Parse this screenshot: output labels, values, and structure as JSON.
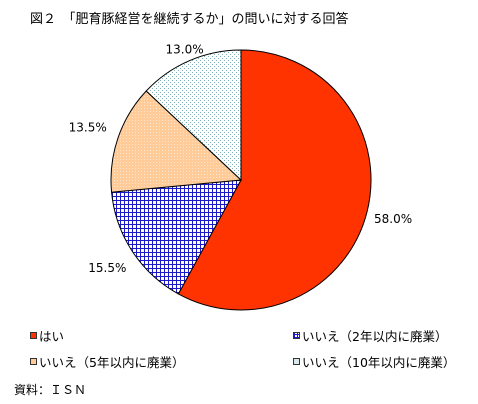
{
  "title": "図２　「肥育豚経営を継続するか」の問いに対する回答",
  "source": "資料：ＩＳＮ",
  "colors": {
    "yes": "#ff3300",
    "no2": "#1a1acc",
    "no5": "#ffcc99",
    "no10": "#7ab0b8"
  },
  "chart_data": {
    "type": "pie",
    "title": "図２　「肥育豚経営を継続するか」の問いに対する回答",
    "categories": [
      "はい",
      "いいえ（2年以内に廃業）",
      "いいえ（5年以内に廃業）",
      "いいえ（10年以内に廃業）"
    ],
    "values": [
      58.0,
      15.5,
      13.5,
      13.0
    ],
    "value_labels": [
      "58.0%",
      "15.5%",
      "13.5%",
      "13.0%"
    ],
    "legend": {
      "position": "bottom",
      "labels": [
        "はい",
        "いいえ（2年以内に廃業）",
        "いいえ（5年以内に廃業）",
        "いいえ（10年以内に廃業）"
      ]
    },
    "start_angle": "12 o'clock",
    "direction": "clockwise"
  }
}
